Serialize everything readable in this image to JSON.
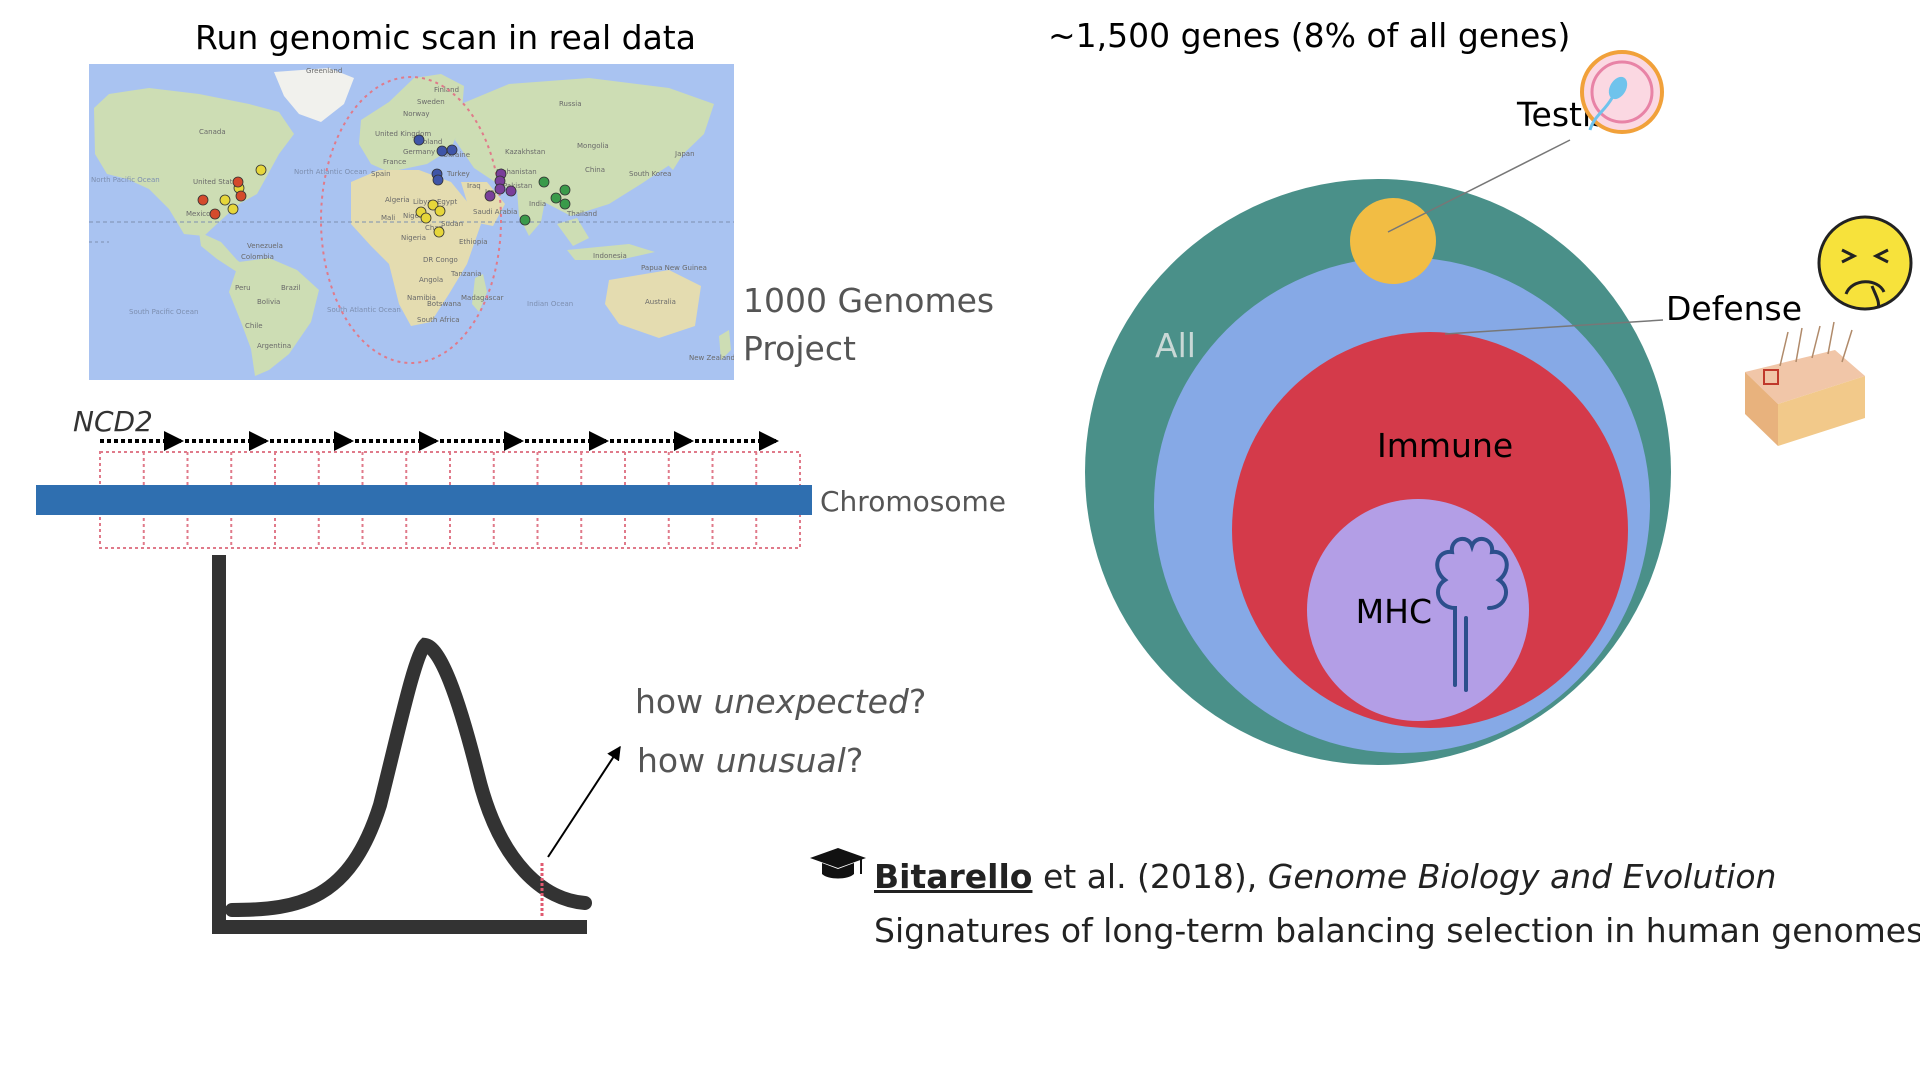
{
  "left_panel": {
    "title": "Run genomic scan in real data",
    "map_caption": {
      "line1": "1000 Genomes",
      "line2": "Project"
    },
    "map_labels": {
      "greenland": "Greenland",
      "canada": "Canada",
      "united_states": "United States",
      "mexico": "Mexico",
      "venezuela": "Venezuela",
      "colombia": "Colombia",
      "brazil": "Brazil",
      "peru": "Peru",
      "bolivia": "Bolivia",
      "chile": "Chile",
      "argentina": "Argentina",
      "north_atlantic": "North Atlantic Ocean",
      "south_atlantic": "South Atlantic Ocean",
      "north_pacific": "North Pacific Ocean",
      "south_pacific": "South Pacific Ocean",
      "indian_ocean": "Indian Ocean",
      "sweden": "Sweden",
      "finland": "Finland",
      "norway": "Norway",
      "united_kingdom": "United Kingdom",
      "poland": "Poland",
      "germany": "Germany",
      "ukraine": "Ukraine",
      "france": "France",
      "spain": "Spain",
      "turkey": "Turkey",
      "iraq": "Iraq",
      "iran": "Iran",
      "algeria": "Algeria",
      "libya": "Libya",
      "egypt": "Egypt",
      "saudi_arabia": "Saudi Arabia",
      "mali": "Mali",
      "niger": "Niger",
      "chad": "Chad",
      "sudan": "Sudan",
      "ethiopia": "Ethiopia",
      "nigeria": "Nigeria",
      "dr_congo": "DR Congo",
      "tanzania": "Tanzania",
      "angola": "Angola",
      "namibia": "Namibia",
      "botswana": "Botswana",
      "south_africa": "South Africa",
      "madagascar": "Madagascar",
      "kazakhstan": "Kazakhstan",
      "russia": "Russia",
      "mongolia": "Mongolia",
      "china": "China",
      "afghanistan": "Afghanistan",
      "pakistan": "Pakistan",
      "india": "India",
      "thailand": "Thailand",
      "indonesia": "Indonesia",
      "japan": "Japan",
      "south_korea": "South Korea",
      "australia": "Australia",
      "papua_new_guinea": "Papua New Guinea",
      "new_zealand": "New Zealand"
    },
    "sample_points": [
      {
        "color": "#e6d63a"
      },
      {
        "color": "#e6d63a"
      },
      {
        "color": "#d44a2c"
      },
      {
        "color": "#d44a2c"
      },
      {
        "color": "#e6d63a"
      },
      {
        "color": "#e6d63a"
      },
      {
        "color": "#d44a2c"
      },
      {
        "color": "#d44a2c"
      },
      {
        "color": "#3f55a8"
      },
      {
        "color": "#3f55a8"
      },
      {
        "color": "#3f55a8"
      },
      {
        "color": "#3f55a8"
      },
      {
        "color": "#3f55a8"
      },
      {
        "color": "#e6d63a"
      },
      {
        "color": "#e6d63a"
      },
      {
        "color": "#e6d63a"
      },
      {
        "color": "#e6d63a"
      },
      {
        "color": "#e6d63a"
      },
      {
        "color": "#7a3f9a"
      },
      {
        "color": "#7a3f9a"
      },
      {
        "color": "#7a3f9a"
      },
      {
        "color": "#7a3f9a"
      },
      {
        "color": "#7a3f9a"
      },
      {
        "color": "#3a9a4a"
      },
      {
        "color": "#3a9a4a"
      },
      {
        "color": "#3a9a4a"
      },
      {
        "color": "#3a9a4a"
      },
      {
        "color": "#3a9a4a"
      }
    ],
    "gene_label": "NCD2",
    "chromosome_label": "Chromosome",
    "question1_prefix": "how ",
    "question1_italic": "unexpected",
    "question1_suffix": "?",
    "question2_prefix": "how ",
    "question2_italic": "unusual",
    "question2_suffix": "?"
  },
  "right_panel": {
    "title": "~1,500 genes (8% of all genes)",
    "labels": {
      "testis": "Testis",
      "defense": "Defense",
      "all": "All",
      "immune": "Immune",
      "mhc": "MHC"
    },
    "colors": {
      "all": "#4a9089",
      "defense": "#86a9e6",
      "immune": "#d43a4a",
      "mhc": "#b39ee6",
      "testis": "#f2bd44"
    }
  },
  "citation": {
    "author": "Bitarello",
    "etal": " et al. (2018), ",
    "journal": "Genome Biology and Evolution",
    "paper_title": "Signatures of long-term balancing selection in human genomes"
  }
}
